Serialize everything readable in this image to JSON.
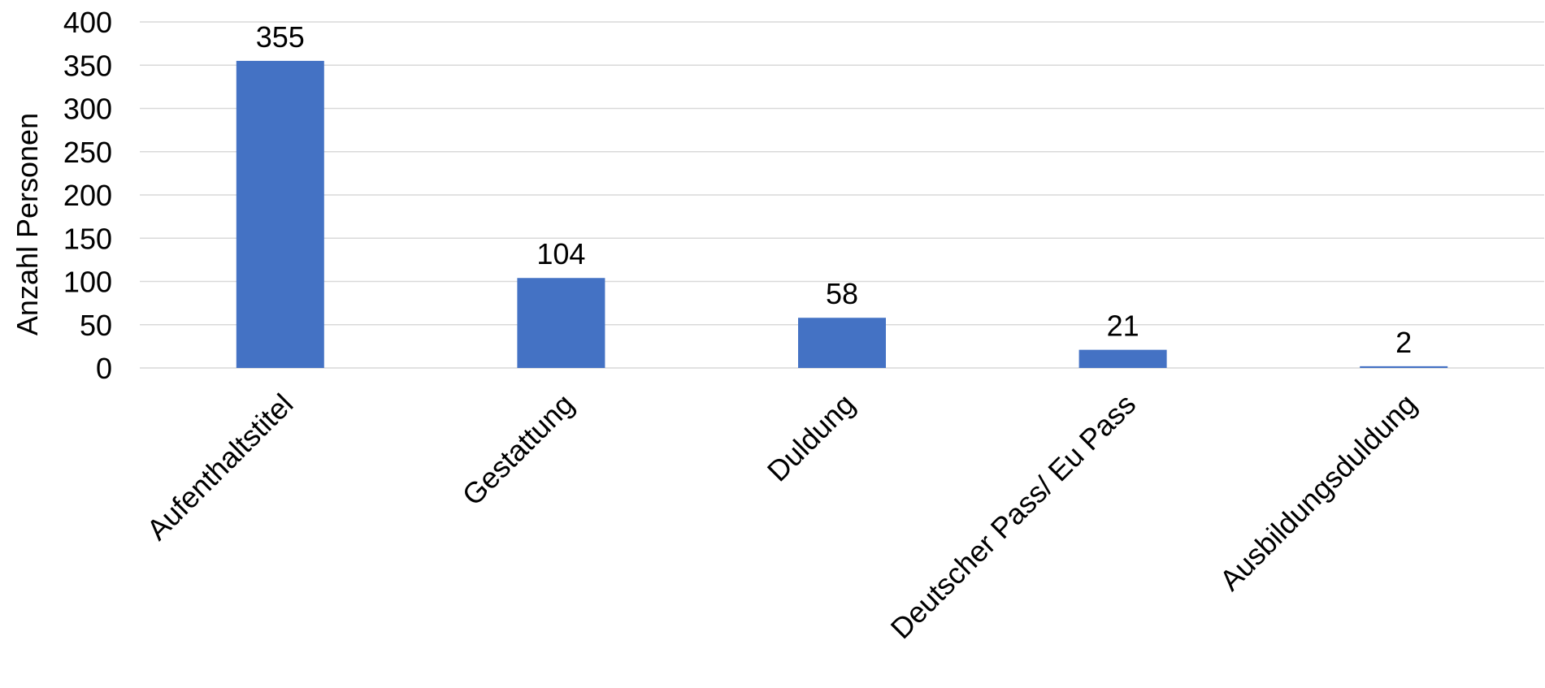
{
  "chart_data": {
    "type": "bar",
    "title": "",
    "xlabel": "",
    "ylabel": "Anzahl Personen",
    "categories": [
      "Aufenthaltstitel",
      "Gestattung",
      "Duldung",
      "Deutscher Pass/ Eu Pass",
      "Ausbildungsduldung"
    ],
    "values": [
      355,
      104,
      58,
      21,
      2
    ],
    "ylim": [
      0,
      400
    ],
    "yticks": [
      0,
      50,
      100,
      150,
      200,
      250,
      300,
      350,
      400
    ],
    "grid": true,
    "legend": "none",
    "bar_color": "#4472C4",
    "data_labels": true
  }
}
